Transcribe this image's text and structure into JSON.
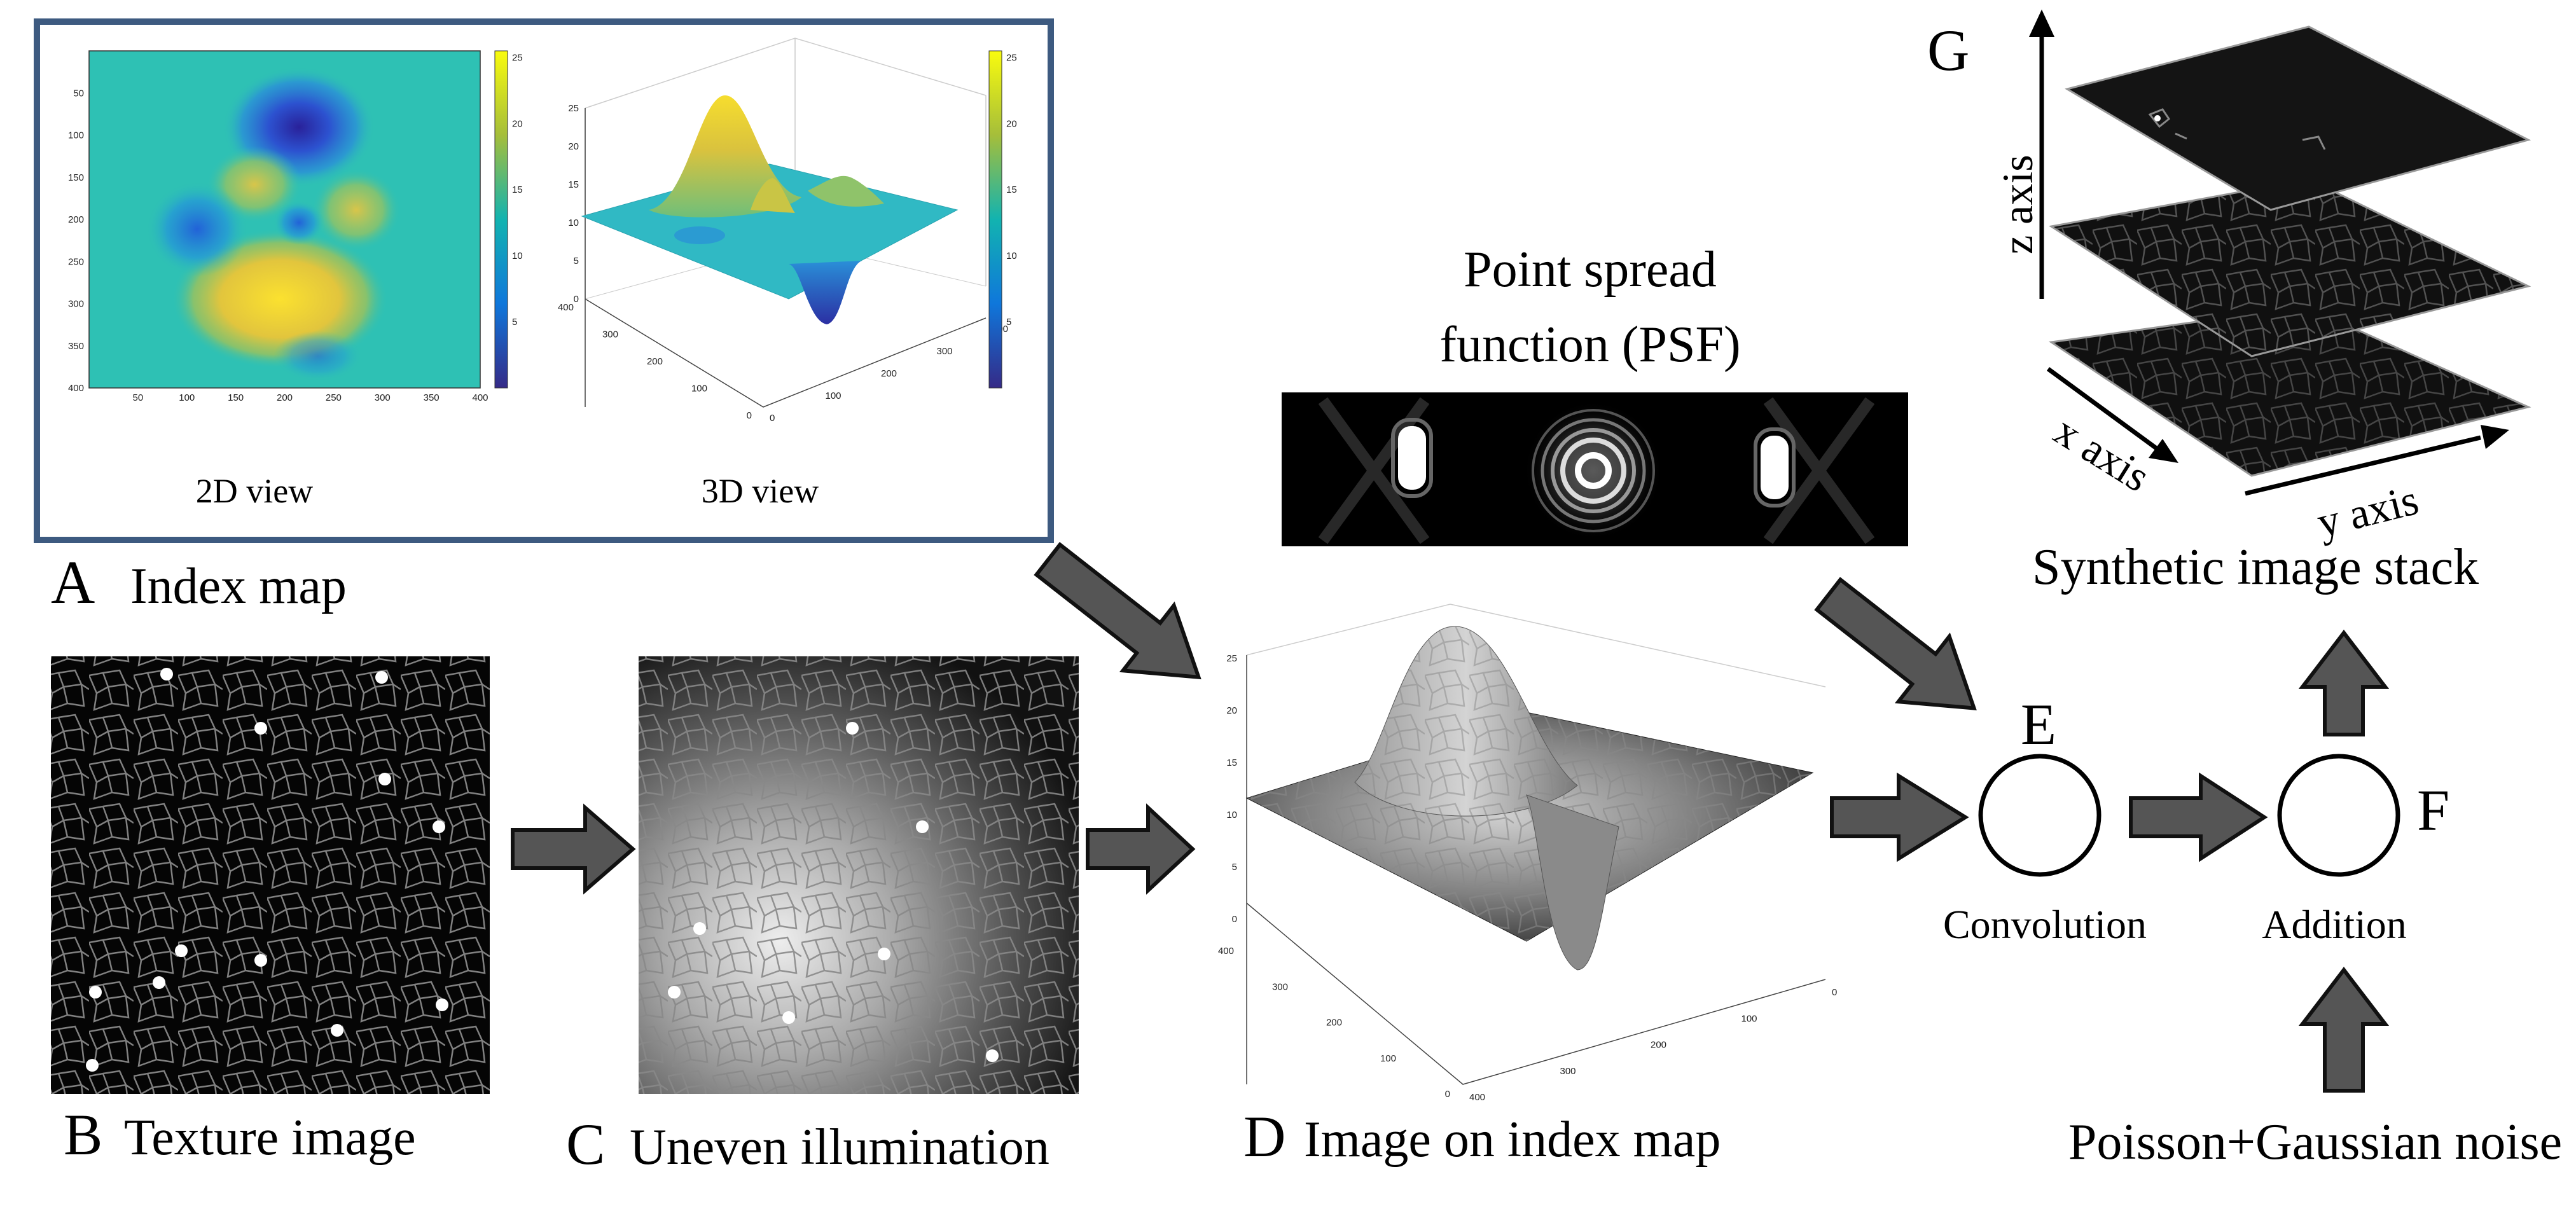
{
  "panels": {
    "a": {
      "letter": "A",
      "title": "Index map",
      "view2d_label": "2D view",
      "view3d_label": "3D view",
      "view2d_x_ticks": [
        "50",
        "100",
        "150",
        "200",
        "250",
        "300",
        "350",
        "400"
      ],
      "view2d_y_ticks": [
        "50",
        "100",
        "150",
        "200",
        "250",
        "300",
        "350",
        "400"
      ],
      "view3d_z_ticks": [
        "0",
        "5",
        "10",
        "15",
        "20",
        "25"
      ],
      "view3d_left_ticks": [
        "400",
        "300",
        "200",
        "100",
        "0"
      ],
      "view3d_right_ticks": [
        "0",
        "100",
        "200",
        "300",
        "400"
      ],
      "colorbar_ticks": [
        "5",
        "10",
        "15",
        "20",
        "25"
      ]
    },
    "b": {
      "letter": "B",
      "title": "Texture image"
    },
    "c": {
      "letter": "C",
      "title": "Uneven illumination"
    },
    "d": {
      "letter": "D",
      "title": "Image on index map",
      "z_ticks": [
        "0",
        "5",
        "10",
        "15",
        "20",
        "25"
      ],
      "left_ticks": [
        "400",
        "300",
        "200",
        "100",
        "0"
      ],
      "right_ticks": [
        "0",
        "100",
        "200",
        "300",
        "400"
      ]
    },
    "e": {
      "letter": "E",
      "caption": "Convolution"
    },
    "f": {
      "letter": "F",
      "caption": "Addition"
    },
    "g": {
      "letter": "G",
      "title": "Synthetic image stack",
      "x_axis": "x axis",
      "y_axis": "y axis",
      "z_axis": "z axis"
    },
    "psf": {
      "title_line1": "Point spread",
      "title_line2": "function (PSF)"
    },
    "noise": {
      "title": "Poisson+Gaussian noise"
    }
  },
  "colors": {
    "frame": "#3d5a80",
    "arrow_fill": "#555555",
    "arrow_stroke": "#111111",
    "map_base": "#2ec1b4",
    "map_high": "#fadb3a",
    "map_low": "#2b2fa3"
  }
}
